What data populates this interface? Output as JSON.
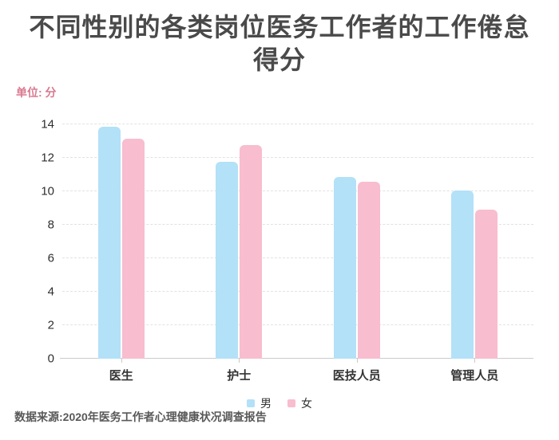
{
  "title": "不同性别的各类岗位医务工作者的工作倦怠得分",
  "unit_label": "单位: 分",
  "source": "数据来源:2020年医务工作者心理健康状况调查报告",
  "colors": {
    "male_bar": "#b3e1f8",
    "female_bar": "#f8bdcf",
    "title_text": "#4a4a4a",
    "unit_text": "#d9798f",
    "source_text": "#595959",
    "gridline": "#e2e2e2",
    "axis_line": "#cbcbcb"
  },
  "chart_data": {
    "type": "bar",
    "title": "不同性别的各类岗位医务工作者的工作倦怠得分",
    "ylabel": "单位: 分",
    "categories": [
      "医生",
      "护士",
      "医技人员",
      "管理人员"
    ],
    "series": [
      {
        "name": "男",
        "color": "#b3e1f8",
        "values": [
          13.85,
          11.75,
          10.85,
          10.05
        ]
      },
      {
        "name": "女",
        "color": "#f8bdcf",
        "values": [
          13.15,
          12.75,
          10.55,
          8.9
        ]
      }
    ],
    "ylim": [
      0,
      14
    ],
    "ytick_step": 2,
    "yticks": [
      0,
      2,
      4,
      6,
      8,
      10,
      12,
      14
    ],
    "grid": "horizontal-dashed",
    "legend_position": "bottom-center"
  }
}
